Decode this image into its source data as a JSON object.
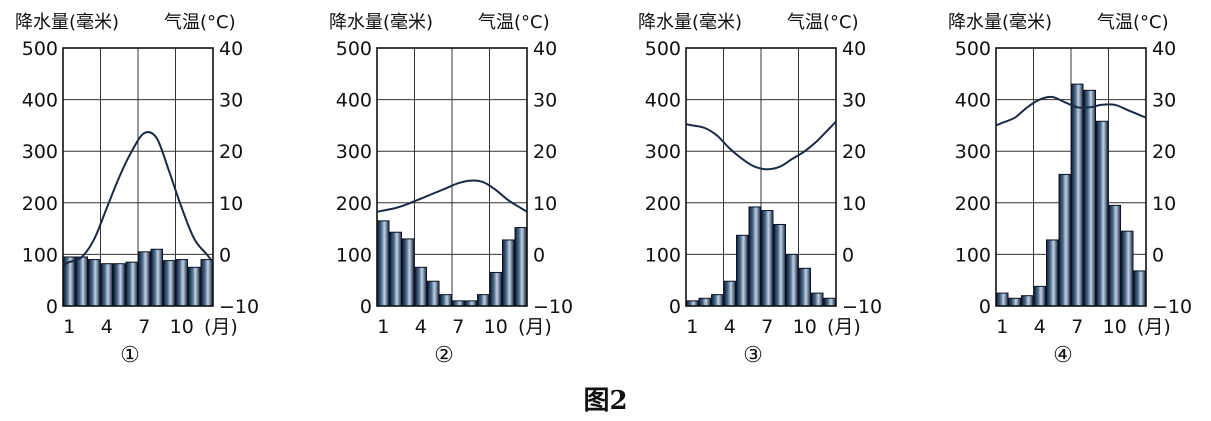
{
  "figure_caption": "图2",
  "chart_data": [
    {
      "type": "bar",
      "panel_label": "①",
      "left_axis_label": "降水量(毫米)",
      "right_axis_label": "气温(°C)",
      "x_unit": "(月)",
      "x_ticks": [
        "1",
        "4",
        "7",
        "10"
      ],
      "precip_ticks": [
        "500",
        "400",
        "300",
        "200",
        "100",
        "0"
      ],
      "temp_ticks": [
        "40",
        "30",
        "20",
        "10",
        "0",
        "-10"
      ],
      "precip_range": [
        0,
        500
      ],
      "temp_range": [
        -10,
        40
      ],
      "grid": true,
      "months": [
        1,
        2,
        3,
        4,
        5,
        6,
        7,
        8,
        9,
        10,
        11,
        12
      ],
      "series": [
        {
          "name": "降水量",
          "kind": "bar",
          "axis": "left",
          "values": [
            95,
            95,
            90,
            82,
            82,
            85,
            105,
            110,
            88,
            90,
            75,
            90
          ]
        },
        {
          "name": "气温",
          "kind": "line",
          "axis": "right",
          "values": [
            -1.5,
            -0.5,
            3,
            9,
            15,
            20,
            23.5,
            22.5,
            16,
            9,
            3,
            0
          ]
        }
      ]
    },
    {
      "type": "bar",
      "panel_label": "②",
      "left_axis_label": "降水量(毫米)",
      "right_axis_label": "气温(°C)",
      "x_unit": "(月)",
      "x_ticks": [
        "1",
        "4",
        "7",
        "10"
      ],
      "precip_ticks": [
        "500",
        "400",
        "300",
        "200",
        "100",
        "0"
      ],
      "temp_ticks": [
        "40",
        "30",
        "20",
        "10",
        "0",
        "-10"
      ],
      "precip_range": [
        0,
        500
      ],
      "temp_range": [
        -10,
        40
      ],
      "grid": true,
      "months": [
        1,
        2,
        3,
        4,
        5,
        6,
        7,
        8,
        9,
        10,
        11,
        12
      ],
      "series": [
        {
          "name": "降水量",
          "kind": "bar",
          "axis": "left",
          "values": [
            165,
            143,
            130,
            75,
            48,
            22,
            10,
            10,
            22,
            65,
            128,
            152
          ]
        },
        {
          "name": "气温",
          "kind": "line",
          "axis": "right",
          "values": [
            8.5,
            9,
            9.8,
            10.8,
            11.8,
            12.8,
            13.8,
            14.3,
            14,
            12.5,
            10.5,
            9
          ]
        }
      ]
    },
    {
      "type": "bar",
      "panel_label": "③",
      "left_axis_label": "降水量(毫米)",
      "right_axis_label": "气温(°C)",
      "x_unit": "(月)",
      "x_ticks": [
        "1",
        "4",
        "7",
        "10"
      ],
      "precip_ticks": [
        "500",
        "400",
        "300",
        "200",
        "100",
        "0"
      ],
      "temp_ticks": [
        "40",
        "30",
        "20",
        "10",
        "0",
        "-10"
      ],
      "precip_range": [
        0,
        500
      ],
      "temp_range": [
        -10,
        40
      ],
      "grid": true,
      "months": [
        1,
        2,
        3,
        4,
        5,
        6,
        7,
        8,
        9,
        10,
        11,
        12
      ],
      "series": [
        {
          "name": "降水量",
          "kind": "bar",
          "axis": "left",
          "values": [
            10,
            15,
            22,
            48,
            137,
            192,
            185,
            158,
            100,
            73,
            25,
            15
          ]
        },
        {
          "name": "气温",
          "kind": "line",
          "axis": "right",
          "values": [
            25,
            24.5,
            23,
            20.5,
            18.5,
            17,
            16.5,
            17,
            18.5,
            20,
            22,
            24.5
          ]
        }
      ]
    },
    {
      "type": "bar",
      "panel_label": "④",
      "left_axis_label": "降水量(毫米)",
      "right_axis_label": "气温(°C)",
      "x_unit": "(月)",
      "x_ticks": [
        "1",
        "4",
        "7",
        "10"
      ],
      "precip_ticks": [
        "500",
        "400",
        "300",
        "200",
        "100",
        "0"
      ],
      "temp_ticks": [
        "40",
        "30",
        "20",
        "10",
        "0",
        "-10"
      ],
      "precip_range": [
        0,
        500
      ],
      "temp_range": [
        -10,
        40
      ],
      "grid": true,
      "months": [
        1,
        2,
        3,
        4,
        5,
        6,
        7,
        8,
        9,
        10,
        11,
        12
      ],
      "series": [
        {
          "name": "降水量",
          "kind": "bar",
          "axis": "left",
          "values": [
            25,
            15,
            20,
            38,
            128,
            255,
            430,
            418,
            358,
            195,
            145,
            68
          ]
        },
        {
          "name": "气温",
          "kind": "line",
          "axis": "right",
          "values": [
            25.5,
            26.5,
            28.5,
            30,
            30.5,
            29.5,
            28.5,
            28.5,
            29,
            29,
            28,
            27
          ]
        }
      ]
    }
  ]
}
